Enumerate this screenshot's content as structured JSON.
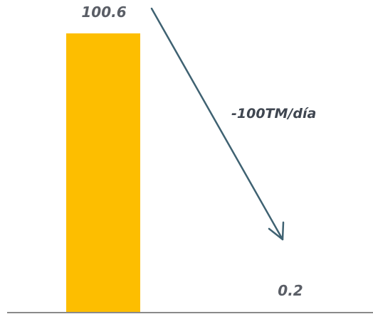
{
  "chart_data": {
    "type": "bar",
    "categories": [
      "",
      ""
    ],
    "values": [
      100.6,
      0.2
    ],
    "value_labels": [
      "100.6",
      "0.2"
    ],
    "ylim": [
      0,
      100.6
    ],
    "title": "",
    "xlabel": "",
    "ylabel": "",
    "grid": false,
    "legend": "none",
    "colors": {
      "bar": "#FDBE00",
      "arrow": "#3F6272",
      "axis": "#8A8A8A",
      "label": "#5A5E66"
    },
    "annotation": {
      "text": "-100TM/día",
      "type": "arrow"
    }
  }
}
